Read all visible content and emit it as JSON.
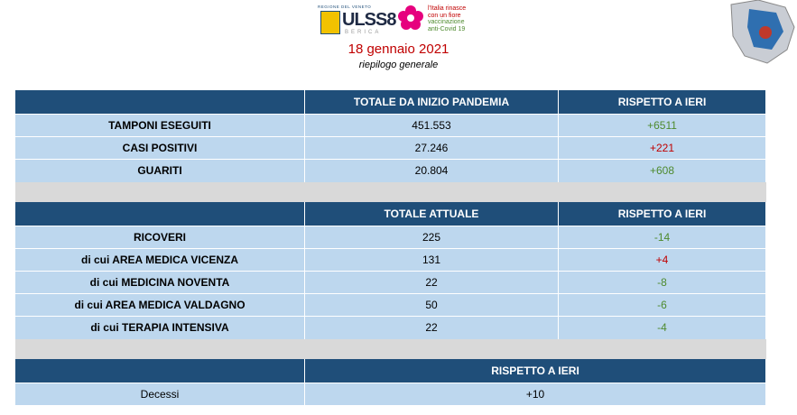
{
  "header": {
    "region": "REGIONE DEL VENETO",
    "brand": "ULSS8",
    "brand_sub": "BERICA",
    "campaign": [
      "l'Italia rinasce",
      "con un fiore",
      "vaccinazione",
      "anti-Covid 19"
    ],
    "date": "18 gennaio 2021",
    "subtitle": "riepilogo generale"
  },
  "sections": [
    {
      "headers": [
        "TOTALE DA INIZIO PANDEMIA",
        "RISPETTO A IERI"
      ],
      "rows": [
        {
          "label": "TAMPONI ESEGUITI",
          "value": "451.553",
          "change": "+6511",
          "color": "#4e8a2e"
        },
        {
          "label": "CASI POSITIVI",
          "value": "27.246",
          "change": "+221",
          "color": "#c00000"
        },
        {
          "label": "GUARITI",
          "value": "20.804",
          "change": "+608",
          "color": "#4e8a2e"
        }
      ]
    },
    {
      "headers": [
        "TOTALE ATTUALE",
        "RISPETTO A IERI"
      ],
      "rows": [
        {
          "label": "RICOVERI",
          "value": "225",
          "change": "-14",
          "color": "#4e8a2e"
        },
        {
          "label": "di cui AREA MEDICA VICENZA",
          "value": "131",
          "change": "+4",
          "color": "#c00000"
        },
        {
          "label": "di cui MEDICINA NOVENTA",
          "value": "22",
          "change": "-8",
          "color": "#4e8a2e"
        },
        {
          "label": "di cui AREA MEDICA VALDAGNO",
          "value": "50",
          "change": "-6",
          "color": "#4e8a2e"
        },
        {
          "label": "di cui TERAPIA INTENSIVA",
          "value": "22",
          "change": "-4",
          "color": "#4e8a2e"
        }
      ]
    },
    {
      "headers": [
        "RISPETTO A IERI"
      ],
      "rows": [
        {
          "label": "Decessi",
          "change": "+10",
          "color": "#000000"
        }
      ]
    }
  ]
}
